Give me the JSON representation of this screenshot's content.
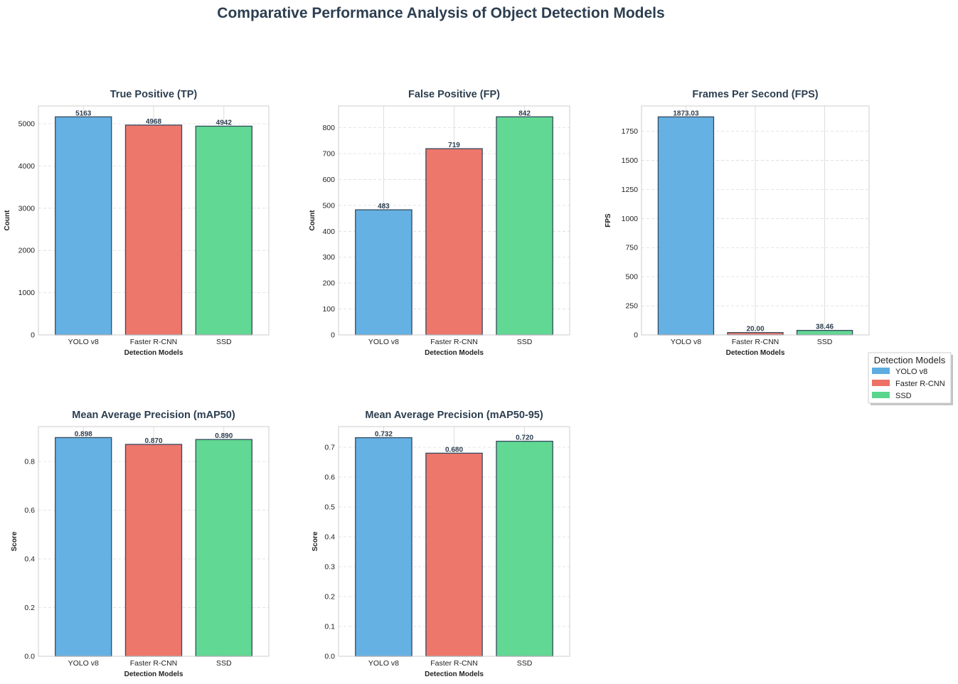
{
  "chart_data": {
    "type": "bar",
    "title": "Comparative Performance Analysis of Object Detection Models",
    "categories": [
      "YOLO v8",
      "Faster R-CNN",
      "SSD"
    ],
    "colors": [
      "#5DADE2",
      "#EC7063",
      "#58D68D"
    ],
    "edge_color": "#34495E",
    "legend": {
      "title": "Detection Models",
      "entries": [
        "YOLO v8",
        "Faster R-CNN",
        "SSD"
      ],
      "placement": "right"
    },
    "grid": true,
    "subplots": [
      {
        "title": "True Positive (TP)",
        "xlabel": "Detection Models",
        "ylabel": "Count",
        "values": [
          5163,
          4968,
          4942
        ],
        "labels": [
          "5163",
          "4968",
          "4942"
        ],
        "ylim": [
          0,
          5421
        ],
        "yticks": [
          0,
          1000,
          2000,
          3000,
          4000,
          5000
        ],
        "ytick_labels": [
          "0",
          "1000",
          "2000",
          "3000",
          "4000",
          "5000"
        ]
      },
      {
        "title": "False Positive (FP)",
        "xlabel": "Detection Models",
        "ylabel": "Count",
        "values": [
          483,
          719,
          842
        ],
        "labels": [
          "483",
          "719",
          "842"
        ],
        "ylim": [
          0,
          884
        ],
        "yticks": [
          0,
          100,
          200,
          300,
          400,
          500,
          600,
          700,
          800
        ],
        "ytick_labels": [
          "0",
          "100",
          "200",
          "300",
          "400",
          "500",
          "600",
          "700",
          "800"
        ]
      },
      {
        "title": "Frames Per Second (FPS)",
        "xlabel": "Detection Models",
        "ylabel": "FPS",
        "values": [
          1873.03,
          20.0,
          38.46
        ],
        "labels": [
          "1873.03",
          "20.00",
          "38.46"
        ],
        "ylim": [
          0,
          1967
        ],
        "yticks": [
          0,
          250,
          500,
          750,
          1000,
          1250,
          1500,
          1750
        ],
        "ytick_labels": [
          "0",
          "250",
          "500",
          "750",
          "1000",
          "1250",
          "1500",
          "1750"
        ]
      },
      {
        "title": "Mean Average Precision (mAP50)",
        "xlabel": "Detection Models",
        "ylabel": "Score",
        "values": [
          0.898,
          0.87,
          0.89
        ],
        "labels": [
          "0.898",
          "0.870",
          "0.890"
        ],
        "ylim": [
          0,
          0.943
        ],
        "yticks": [
          0,
          0.2,
          0.4,
          0.6,
          0.8
        ],
        "ytick_labels": [
          "0.0",
          "0.2",
          "0.4",
          "0.6",
          "0.8"
        ]
      },
      {
        "title": "Mean Average Precision (mAP50-95)",
        "xlabel": "Detection Models",
        "ylabel": "Score",
        "values": [
          0.732,
          0.68,
          0.72
        ],
        "labels": [
          "0.732",
          "0.680",
          "0.720"
        ],
        "ylim": [
          0,
          0.769
        ],
        "yticks": [
          0,
          0.1,
          0.2,
          0.3,
          0.4,
          0.5,
          0.6,
          0.7
        ],
        "ytick_labels": [
          "0.0",
          "0.1",
          "0.2",
          "0.3",
          "0.4",
          "0.5",
          "0.6",
          "0.7"
        ]
      }
    ]
  }
}
